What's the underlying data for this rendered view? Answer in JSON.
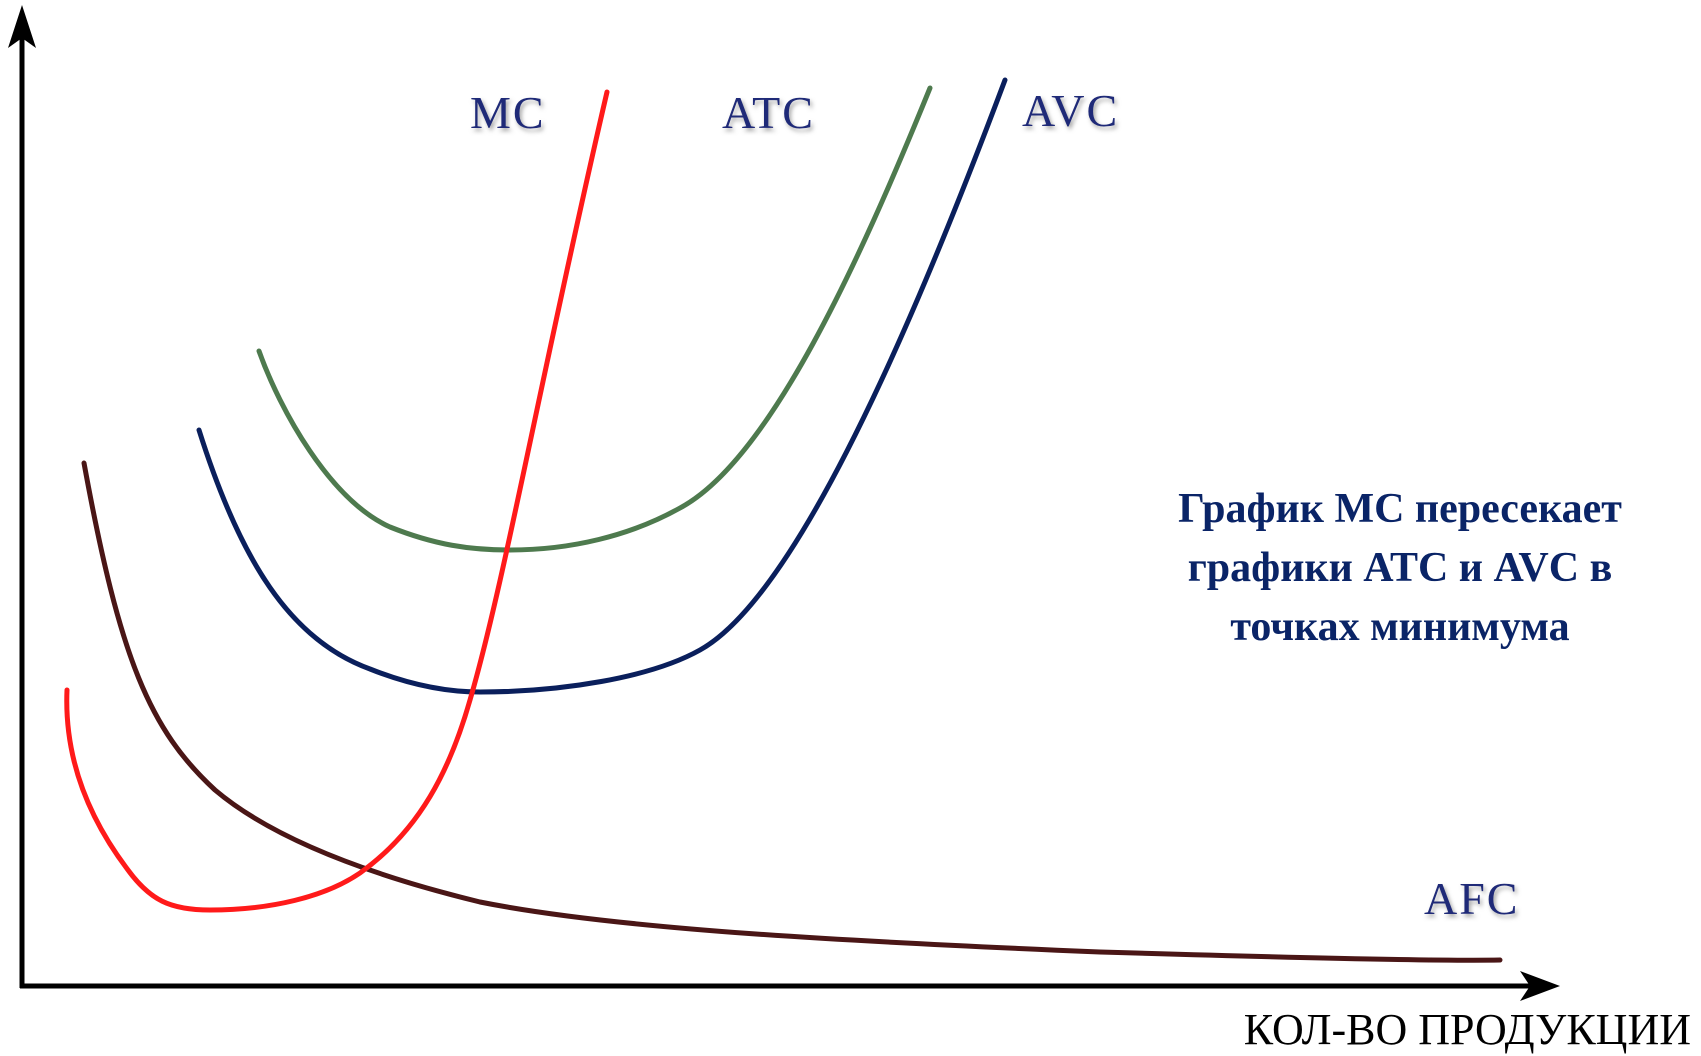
{
  "labels": {
    "mc": "MC",
    "atc": "ATC",
    "avc": "AVC",
    "afc": "AFC"
  },
  "caption": {
    "line1": "График МС пересекает",
    "line2": "графики АТС и AVC в",
    "line3": "точках минимума"
  },
  "x_axis_label": "КОЛ-ВО ПРОДУКЦИИ",
  "colors": {
    "mc": "#ff1a1a",
    "atc": "#4e7a4e",
    "avc": "#0a1f5c",
    "afc": "#4a1616",
    "axes": "#000000",
    "labels": "#1f2a78",
    "caption": "#0a2467"
  }
}
